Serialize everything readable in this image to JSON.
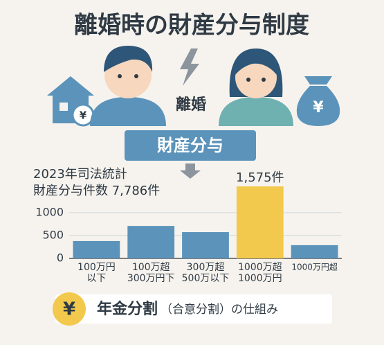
{
  "title": "離婚時の財産分与制度",
  "house_symbol": "¥",
  "bag_symbol": "¥",
  "divorce_label": "離婚",
  "division_label": "財産分与",
  "stats": [
    "2023年司法統計",
    "財産分与件数 7,786件"
  ],
  "footer": {
    "symbol": "¥",
    "main": "年金分割",
    "sub": "（合意分割）の仕組み"
  },
  "chart_data": {
    "type": "bar",
    "categories": [
      [
        "100万円",
        "以下"
      ],
      [
        "100万超",
        "300万円下"
      ],
      [
        "300万超",
        "500万以下"
      ],
      [
        "1000万超",
        "1000万円"
      ],
      [
        "1000万円超"
      ]
    ],
    "values": [
      380,
      710,
      575,
      1575,
      290
    ],
    "value_labels": [
      null,
      null,
      null,
      "1,575件",
      null
    ],
    "colors": [
      "#5b93ba",
      "#5b93ba",
      "#5b93ba",
      "#f2c94c",
      "#5b93ba"
    ],
    "ylim": [
      0,
      1600
    ],
    "yticks": [
      0,
      500,
      1000
    ],
    "grid": true
  }
}
